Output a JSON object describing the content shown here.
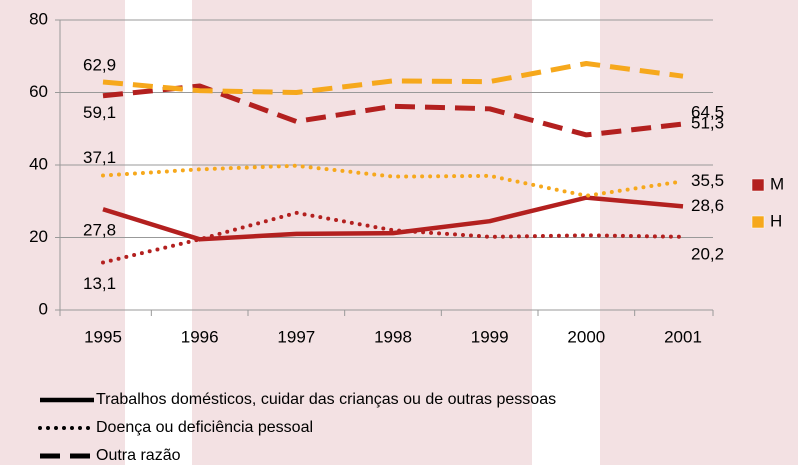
{
  "chart_data": {
    "type": "line",
    "categories": [
      "1995",
      "1996",
      "1997",
      "1998",
      "1999",
      "2000",
      "2001"
    ],
    "ylim": [
      0,
      80
    ],
    "yticks": [
      0,
      20,
      40,
      60,
      80
    ],
    "grid": true,
    "series": [
      {
        "color": "#b3201f",
        "dash": "solid",
        "values": [
          27.8,
          19.5,
          21,
          21.2,
          24.5,
          31,
          28.6
        ],
        "value_labels": [
          "27,8",
          null,
          null,
          null,
          null,
          null,
          "28,6"
        ]
      },
      {
        "color": "#b3201f",
        "dash": "dotted",
        "values": [
          13.1,
          19.5,
          26.8,
          22,
          20.2,
          20.6,
          20.2
        ],
        "value_labels": [
          "13,1",
          null,
          null,
          null,
          null,
          null,
          "20,2"
        ]
      },
      {
        "color": "#b3201f",
        "dash": "dashed",
        "values": [
          59.1,
          61.8,
          52,
          56.2,
          55.5,
          48.3,
          51.3
        ],
        "value_labels": [
          "59,1",
          null,
          null,
          null,
          null,
          null,
          "51,3"
        ]
      },
      {
        "color": "#f6a81c",
        "dash": "dotted",
        "values": [
          37.1,
          38.8,
          39.8,
          36.8,
          37,
          31.5,
          35.5
        ],
        "value_labels": [
          "37,1",
          null,
          null,
          null,
          null,
          null,
          "35,5"
        ]
      },
      {
        "color": "#f6a81c",
        "dash": "dashed",
        "values": [
          62.9,
          60.5,
          60,
          63.2,
          63,
          68,
          64.5
        ],
        "value_labels": [
          "62,9",
          null,
          null,
          null,
          null,
          null,
          "64,5"
        ]
      }
    ],
    "color_legend": [
      {
        "name": "M",
        "color": "#b3201f"
      },
      {
        "name": "H",
        "color": "#f6a81c"
      }
    ],
    "style_legend": [
      {
        "name": "Trabalhos domésticos, cuidar das crianças ou de outras pessoas",
        "dash": "solid"
      },
      {
        "name": "Doença ou deficiência pessoal",
        "dash": "dotted"
      },
      {
        "name": "Outra razão",
        "dash": "dashed"
      }
    ]
  }
}
